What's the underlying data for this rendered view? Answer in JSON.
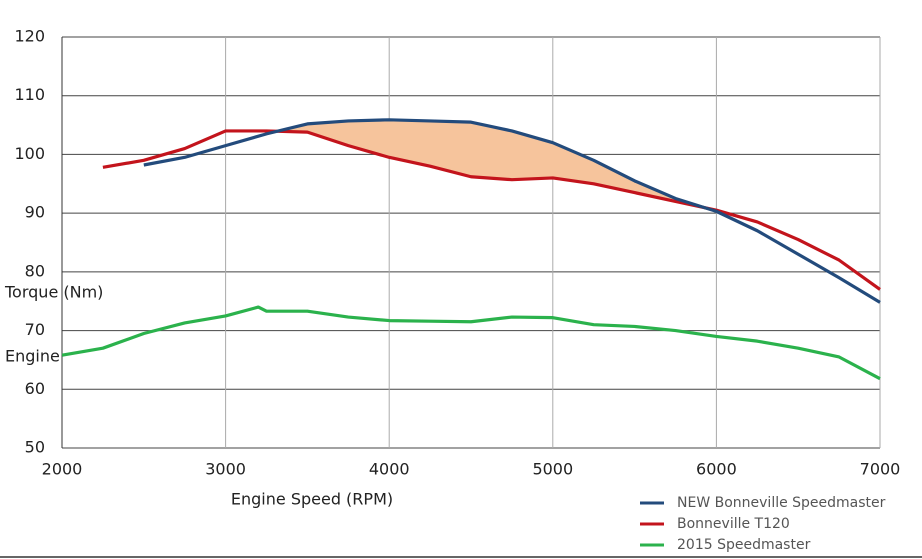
{
  "chart_data": {
    "type": "line",
    "x_label": "Engine Speed (RPM)",
    "y_label": "Torque (Nm)",
    "annotation": "Engine",
    "xlim": [
      2000,
      7000
    ],
    "xticks": [
      2000,
      3000,
      4000,
      5000,
      6000,
      7000
    ],
    "ylim": [
      50,
      120
    ],
    "yticks": [
      50,
      60,
      70,
      80,
      90,
      100,
      110,
      120
    ],
    "grid": true,
    "legend": "lower right",
    "fill_between_color": "#f6c49c",
    "series": [
      {
        "name": "NEW Bonneville Speedmaster",
        "color": "#234b7c",
        "x": [
          2500,
          2750,
          3000,
          3250,
          3500,
          3750,
          4000,
          4250,
          4500,
          4750,
          5000,
          5250,
          5500,
          5750,
          6000,
          6250,
          6500,
          6750,
          7000
        ],
        "values": [
          98.2,
          99.5,
          101.5,
          103.5,
          105.2,
          105.7,
          105.9,
          105.7,
          105.5,
          104,
          102,
          99,
          95.5,
          92.5,
          90.3,
          87,
          83,
          79,
          74.8
        ]
      },
      {
        "name": "Bonneville T120",
        "color": "#c3141c",
        "x": [
          2250,
          2500,
          2750,
          3000,
          3250,
          3500,
          3750,
          4000,
          4250,
          4500,
          4750,
          5000,
          5250,
          5500,
          5750,
          6000,
          6250,
          6500,
          6750,
          7000
        ],
        "values": [
          97.8,
          99,
          101,
          104,
          104,
          103.8,
          101.5,
          99.5,
          98,
          96.2,
          95.7,
          96,
          95,
          93.5,
          92,
          90.5,
          88.5,
          85.5,
          82,
          77
        ]
      },
      {
        "name": "2015 Speedmaster",
        "color": "#2bb24c",
        "x": [
          2000,
          2250,
          2500,
          2750,
          3000,
          3200,
          3250,
          3500,
          3750,
          4000,
          4250,
          4500,
          4750,
          5000,
          5250,
          5500,
          5750,
          6000,
          6250,
          6500,
          6750,
          7000
        ],
        "values": [
          65.8,
          67,
          69.5,
          71.3,
          72.5,
          74,
          73.3,
          73.3,
          72.3,
          71.7,
          71.6,
          71.5,
          72.3,
          72.2,
          71,
          70.7,
          70,
          69,
          68.2,
          67,
          65.5,
          61.8
        ]
      }
    ]
  }
}
